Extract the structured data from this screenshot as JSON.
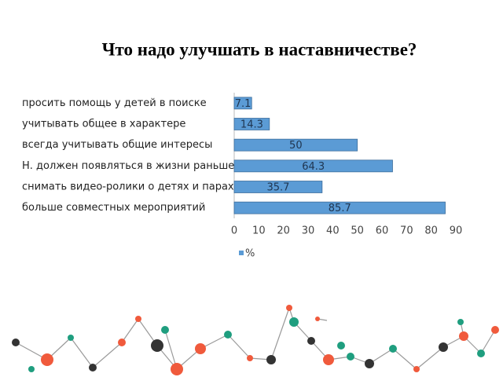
{
  "chart_data": {
    "type": "bar",
    "orientation": "horizontal",
    "title": "Что надо улучшать в наставничестве?",
    "categories": [
      "просить помощь у детей в поиске",
      "учитывать общее в характере",
      "всегда учитывать общие интересы",
      "Н. должен появляться в жизни раньше",
      "снимать видео-ролики о детях и парах",
      "больше совместных мероприятий"
    ],
    "series": [
      {
        "name": "%",
        "color": "#5b9bd5",
        "values": [
          7.1,
          14.3,
          50,
          64.3,
          35.7,
          85.7
        ]
      }
    ],
    "xlim": [
      0,
      90
    ],
    "xticks": [
      0,
      10,
      20,
      30,
      40,
      50,
      60,
      70,
      80,
      90
    ],
    "grid": false,
    "legend": "bottom"
  }
}
